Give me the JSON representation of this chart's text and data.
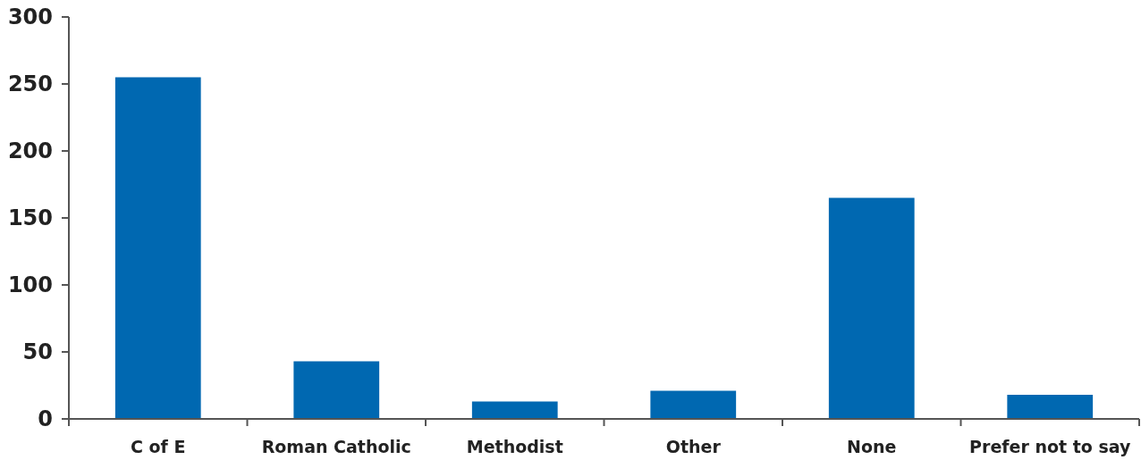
{
  "chart_data": {
    "type": "bar",
    "categories": [
      "C of E",
      "Roman Catholic",
      "Methodist",
      "Other",
      "None",
      "Prefer not to say"
    ],
    "values": [
      255,
      43,
      13,
      21,
      165,
      18
    ],
    "color": "#0068b1",
    "ylim": [
      0,
      300
    ],
    "yticks": [
      0,
      50,
      100,
      150,
      200,
      250,
      300
    ],
    "grid": false
  }
}
